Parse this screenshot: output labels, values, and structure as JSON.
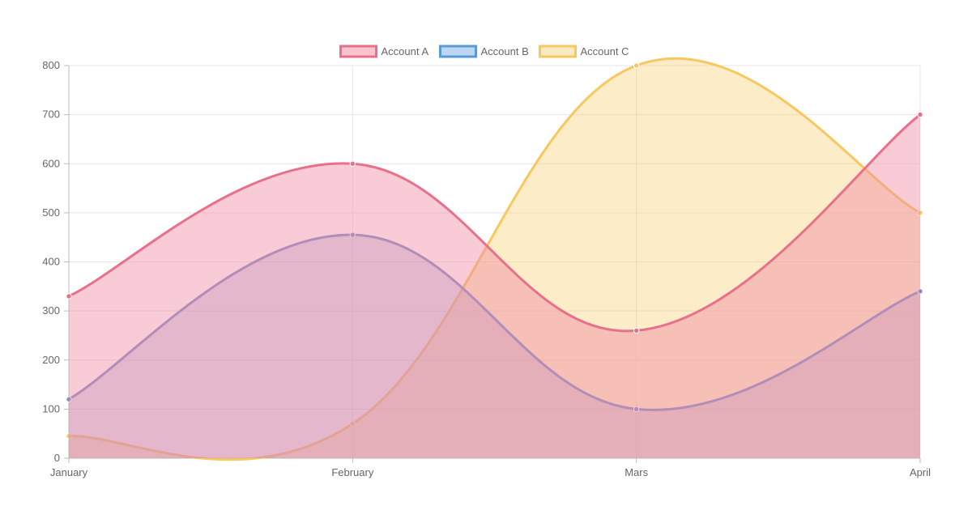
{
  "chart_data": {
    "type": "area",
    "categories": [
      "January",
      "February",
      "Mars",
      "April"
    ],
    "series": [
      {
        "name": "Account C",
        "values": [
          45,
          70,
          800,
          500
        ],
        "color": "#f6c85f",
        "fill": "rgba(246,200,95,0.35)"
      },
      {
        "name": "Account B",
        "values": [
          120,
          455,
          100,
          340
        ],
        "color": "#7f8fc6",
        "fill": "rgba(154,150,208,0.35)"
      },
      {
        "name": "Account A",
        "values": [
          330,
          600,
          260,
          700
        ],
        "color": "#e8708a",
        "fill": "rgba(240,140,165,0.45)"
      }
    ],
    "legend": [
      {
        "name": "Account A",
        "border": "#e8708a",
        "fill": "#f7c3cf"
      },
      {
        "name": "Account B",
        "border": "#5b9bd5",
        "fill": "#bcd7f3"
      },
      {
        "name": "Account C",
        "border": "#f6c85f",
        "fill": "#faeac2"
      }
    ],
    "ylim": [
      0,
      800
    ],
    "yticks": [
      0,
      100,
      200,
      300,
      400,
      500,
      600,
      700,
      800
    ],
    "grid": true,
    "legend_position": "top-center"
  }
}
